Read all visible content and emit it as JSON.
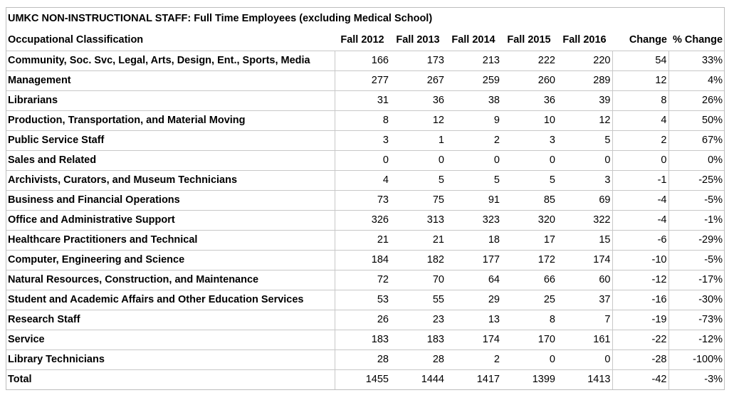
{
  "chart_data": {
    "type": "table",
    "title": "UMKC NON-INSTRUCTIONAL STAFF: Full Time Employees (excluding Medical School)",
    "columns": [
      "Occupational Classification",
      "Fall 2012",
      "Fall 2013",
      "Fall 2014",
      "Fall 2015",
      "Fall 2016",
      "Change",
      "% Change"
    ],
    "rows": [
      {
        "label": "Community, Soc. Svc, Legal, Arts, Design, Ent., Sports, Media",
        "values": [
          "166",
          "173",
          "213",
          "222",
          "220",
          "54",
          "33%"
        ]
      },
      {
        "label": "Management",
        "values": [
          "277",
          "267",
          "259",
          "260",
          "289",
          "12",
          "4%"
        ]
      },
      {
        "label": "Librarians",
        "values": [
          "31",
          "36",
          "38",
          "36",
          "39",
          "8",
          "26%"
        ]
      },
      {
        "label": "Production, Transportation, and Material Moving",
        "values": [
          "8",
          "12",
          "9",
          "10",
          "12",
          "4",
          "50%"
        ]
      },
      {
        "label": "Public Service Staff",
        "values": [
          "3",
          "1",
          "2",
          "3",
          "5",
          "2",
          "67%"
        ]
      },
      {
        "label": "Sales and Related",
        "values": [
          "0",
          "0",
          "0",
          "0",
          "0",
          "0",
          "0%"
        ]
      },
      {
        "label": "Archivists, Curators, and Museum Technicians",
        "values": [
          "4",
          "5",
          "5",
          "5",
          "3",
          "-1",
          "-25%"
        ]
      },
      {
        "label": "Business and Financial Operations",
        "values": [
          "73",
          "75",
          "91",
          "85",
          "69",
          "-4",
          "-5%"
        ]
      },
      {
        "label": "Office and Administrative Support",
        "values": [
          "326",
          "313",
          "323",
          "320",
          "322",
          "-4",
          "-1%"
        ]
      },
      {
        "label": "Healthcare Practitioners and Technical",
        "values": [
          "21",
          "21",
          "18",
          "17",
          "15",
          "-6",
          "-29%"
        ]
      },
      {
        "label": "Computer, Engineering and Science",
        "values": [
          "184",
          "182",
          "177",
          "172",
          "174",
          "-10",
          "-5%"
        ]
      },
      {
        "label": "Natural Resources, Construction, and Maintenance",
        "values": [
          "72",
          "70",
          "64",
          "66",
          "60",
          "-12",
          "-17%"
        ]
      },
      {
        "label": "Student and Academic Affairs and Other Education Services",
        "values": [
          "53",
          "55",
          "29",
          "25",
          "37",
          "-16",
          "-30%"
        ]
      },
      {
        "label": "Research Staff",
        "values": [
          "26",
          "23",
          "13",
          "8",
          "7",
          "-19",
          "-73%"
        ]
      },
      {
        "label": "Service",
        "values": [
          "183",
          "183",
          "174",
          "170",
          "161",
          "-22",
          "-12%"
        ]
      },
      {
        "label": "Library Technicians",
        "values": [
          "28",
          "28",
          "2",
          "0",
          "0",
          "-28",
          "-100%"
        ]
      },
      {
        "label": "Total",
        "values": [
          "1455",
          "1444",
          "1417",
          "1399",
          "1413",
          "-42",
          "-3%"
        ]
      }
    ]
  }
}
